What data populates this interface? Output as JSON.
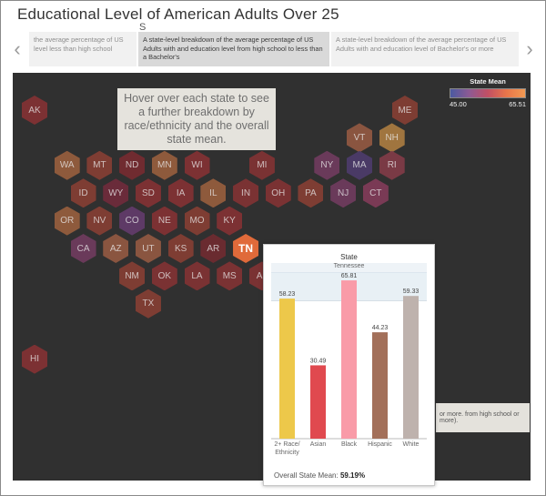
{
  "title": "Educational Level of American Adults Over 25",
  "stray_char": "S",
  "carousel": {
    "prev_icon": "chevron-left-icon",
    "next_icon": "chevron-right-icon",
    "captions": [
      {
        "line1": "the average percentage of US",
        "line2": "level less than high school",
        "line3": "",
        "selected": false
      },
      {
        "line1": "A state-level breakdown of the average percentage of US",
        "line2": "Adults with and education level from high school to less than",
        "line3": "a Bachelor's",
        "selected": true
      },
      {
        "line1": "A state-level breakdown of the average percentage of US",
        "line2": "Adults with and education level of Bachelor's or more",
        "line3": "",
        "selected": false
      }
    ]
  },
  "map": {
    "hint": "Hover over each state to see a further breakdown by race/ethnicity and the overall state mean.",
    "legend": {
      "title": "State Mean",
      "min": "45.00",
      "max": "65.51"
    },
    "states": [
      {
        "abbr": "AK",
        "row": 0,
        "col": 0,
        "color": "#7c3133"
      },
      {
        "abbr": "ME",
        "row": 0,
        "col": 11.4,
        "color": "#7e3d33"
      },
      {
        "abbr": "VT",
        "row": 1,
        "col": 10,
        "color": "#8a5540"
      },
      {
        "abbr": "NH",
        "row": 1,
        "col": 11,
        "color": "#a0753f"
      },
      {
        "abbr": "WA",
        "row": 2,
        "col": 1,
        "color": "#8e5a3c"
      },
      {
        "abbr": "MT",
        "row": 2,
        "col": 2,
        "color": "#7e3d33"
      },
      {
        "abbr": "ND",
        "row": 2,
        "col": 3,
        "color": "#702b30"
      },
      {
        "abbr": "MN",
        "row": 2,
        "col": 4,
        "color": "#8e5a3c"
      },
      {
        "abbr": "WI",
        "row": 2,
        "col": 5,
        "color": "#7c3133"
      },
      {
        "abbr": "MI",
        "row": 2,
        "col": 7,
        "color": "#7a3233"
      },
      {
        "abbr": "NY",
        "row": 2,
        "col": 9,
        "color": "#6a3a5a"
      },
      {
        "abbr": "MA",
        "row": 2,
        "col": 10,
        "color": "#4a3a66"
      },
      {
        "abbr": "RI",
        "row": 2,
        "col": 11,
        "color": "#7a3a45"
      },
      {
        "abbr": "ID",
        "row": 3,
        "col": 1.5,
        "color": "#7e3d33"
      },
      {
        "abbr": "WY",
        "row": 3,
        "col": 2.5,
        "color": "#6a2b3a"
      },
      {
        "abbr": "SD",
        "row": 3,
        "col": 3.5,
        "color": "#7c3133"
      },
      {
        "abbr": "IA",
        "row": 3,
        "col": 4.5,
        "color": "#7c3133"
      },
      {
        "abbr": "IL",
        "row": 3,
        "col": 5.5,
        "color": "#8e5a3c"
      },
      {
        "abbr": "IN",
        "row": 3,
        "col": 6.5,
        "color": "#7a3233"
      },
      {
        "abbr": "OH",
        "row": 3,
        "col": 7.5,
        "color": "#7a3233"
      },
      {
        "abbr": "PA",
        "row": 3,
        "col": 8.5,
        "color": "#7e3d33"
      },
      {
        "abbr": "NJ",
        "row": 3,
        "col": 9.5,
        "color": "#6a3a5a"
      },
      {
        "abbr": "CT",
        "row": 3,
        "col": 10.5,
        "color": "#7a3a55"
      },
      {
        "abbr": "OR",
        "row": 4,
        "col": 1,
        "color": "#8e5a3c"
      },
      {
        "abbr": "NV",
        "row": 4,
        "col": 2,
        "color": "#7e3d33"
      },
      {
        "abbr": "CO",
        "row": 4,
        "col": 3,
        "color": "#5e3a66"
      },
      {
        "abbr": "NE",
        "row": 4,
        "col": 4,
        "color": "#7c3133"
      },
      {
        "abbr": "MO",
        "row": 4,
        "col": 5,
        "color": "#7e3d33"
      },
      {
        "abbr": "KY",
        "row": 4,
        "col": 6,
        "color": "#7c3133"
      },
      {
        "abbr": "CA",
        "row": 5,
        "col": 1.5,
        "color": "#6a3a5a"
      },
      {
        "abbr": "AZ",
        "row": 5,
        "col": 2.5,
        "color": "#8a5540"
      },
      {
        "abbr": "UT",
        "row": 5,
        "col": 3.5,
        "color": "#8a5540"
      },
      {
        "abbr": "KS",
        "row": 5,
        "col": 4.5,
        "color": "#7e3d33"
      },
      {
        "abbr": "AR",
        "row": 5,
        "col": 5.5,
        "color": "#6a2b30"
      },
      {
        "abbr": "TN",
        "row": 5,
        "col": 6.5,
        "color": "#e06a3a",
        "highlight": true
      },
      {
        "abbr": "NM",
        "row": 6,
        "col": 3,
        "color": "#7e3d33"
      },
      {
        "abbr": "OK",
        "row": 6,
        "col": 4,
        "color": "#7a3233"
      },
      {
        "abbr": "LA",
        "row": 6,
        "col": 5,
        "color": "#7a3233"
      },
      {
        "abbr": "MS",
        "row": 6,
        "col": 6,
        "color": "#7a3233"
      },
      {
        "abbr": "AL",
        "row": 6,
        "col": 7,
        "color": "#7a3233"
      },
      {
        "abbr": "TX",
        "row": 7,
        "col": 3.5,
        "color": "#7e3d33"
      },
      {
        "abbr": "HI",
        "row": 9,
        "col": 0,
        "color": "#7c3133"
      }
    ],
    "side_panel_text": "or more. from high school or more)."
  },
  "tooltip": {
    "heading": "State",
    "state": "Tennessee",
    "footer_label": "Overall State Mean:",
    "footer_value": "59.19%"
  },
  "chart_data": {
    "type": "bar",
    "title": "State",
    "subtitle": "Tennessee",
    "categories": [
      "2+ Race/ Ethnicity",
      "Asian",
      "Black",
      "Hispanic",
      "White"
    ],
    "values": [
      58.23,
      30.49,
      65.81,
      44.23,
      59.33
    ],
    "value_labels": [
      "58.23",
      "30.49",
      "65.81",
      "44.23",
      "59.33"
    ],
    "colors": [
      "#edc84a",
      "#e0494f",
      "#f99ba8",
      "#a3705a",
      "#beb2ad"
    ],
    "ylim": [
      0,
      70
    ],
    "grid": false
  }
}
